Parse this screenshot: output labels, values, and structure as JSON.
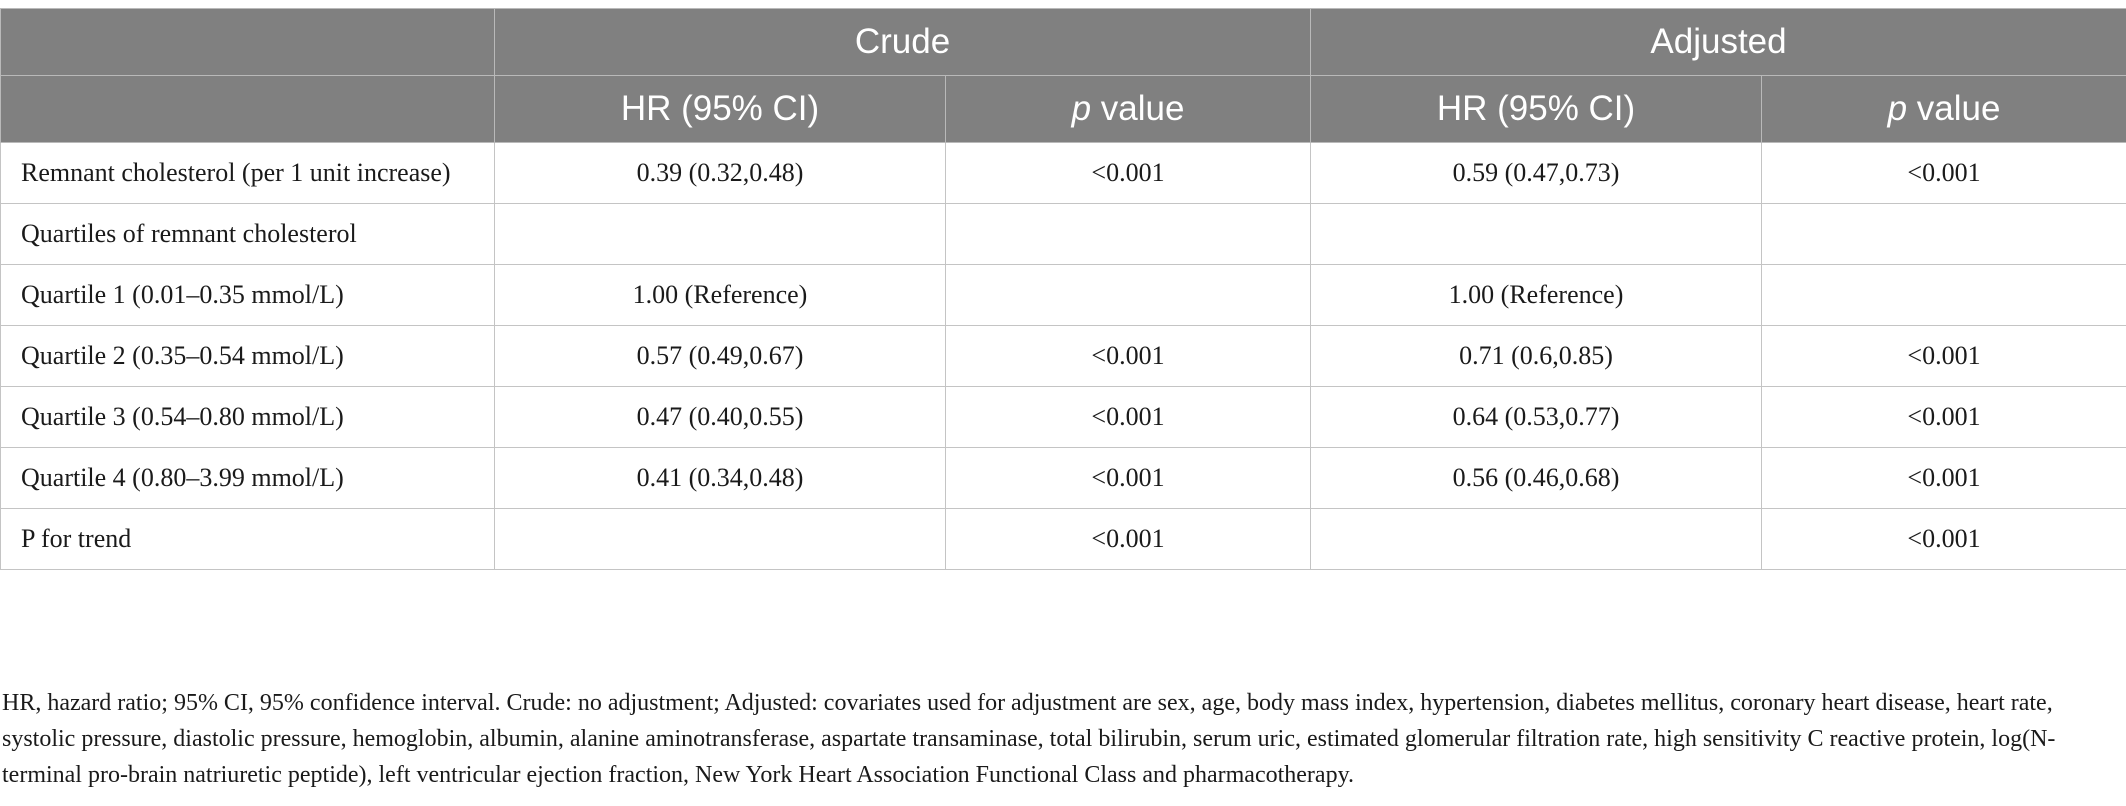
{
  "header": {
    "group_crude": "Crude",
    "group_adjusted": "Adjusted",
    "hr_label": "HR (95% CI)",
    "p_italic": "p",
    "p_rest": " value"
  },
  "rows": [
    {
      "label": "Remnant cholesterol (per 1 unit increase)",
      "crude_hr": "0.39 (0.32,0.48)",
      "crude_p": "<0.001",
      "adj_hr": "0.59 (0.47,0.73)",
      "adj_p": "<0.001"
    },
    {
      "label": "Quartiles of remnant cholesterol",
      "crude_hr": "",
      "crude_p": "",
      "adj_hr": "",
      "adj_p": ""
    },
    {
      "label": "Quartile 1 (0.01–0.35 mmol/L)",
      "crude_hr": "1.00 (Reference)",
      "crude_p": "",
      "adj_hr": "1.00 (Reference)",
      "adj_p": ""
    },
    {
      "label": "Quartile 2 (0.35–0.54 mmol/L)",
      "crude_hr": "0.57 (0.49,0.67)",
      "crude_p": "<0.001",
      "adj_hr": "0.71 (0.6,0.85)",
      "adj_p": "<0.001"
    },
    {
      "label": "Quartile 3 (0.54–0.80 mmol/L)",
      "crude_hr": "0.47 (0.40,0.55)",
      "crude_p": "<0.001",
      "adj_hr": "0.64 (0.53,0.77)",
      "adj_p": "<0.001"
    },
    {
      "label": "Quartile 4 (0.80–3.99 mmol/L)",
      "crude_hr": "0.41 (0.34,0.48)",
      "crude_p": "<0.001",
      "adj_hr": "0.56 (0.46,0.68)",
      "adj_p": "<0.001"
    },
    {
      "label": "P for trend",
      "crude_hr": "",
      "crude_p": "<0.001",
      "adj_hr": "",
      "adj_p": "<0.001"
    }
  ],
  "footnote": "HR, hazard ratio; 95% CI, 95% confidence interval. Crude: no adjustment; Adjusted: covariates used for adjustment are sex, age, body mass index, hypertension, diabetes mellitus, coronary heart disease, heart rate, systolic pressure, diastolic pressure, hemoglobin, albumin, alanine aminotransferase, aspartate transaminase, total bilirubin, serum uric, estimated glomerular filtration rate, high sensitivity C reactive protein, log(N-terminal pro-brain natriuretic peptide), left ventricular ejection fraction, New York Heart Association Functional Class and pharmacotherapy.",
  "colors": {
    "header_bg": "#808080",
    "header_text": "#ffffff",
    "grid": "#c4c4c4"
  }
}
